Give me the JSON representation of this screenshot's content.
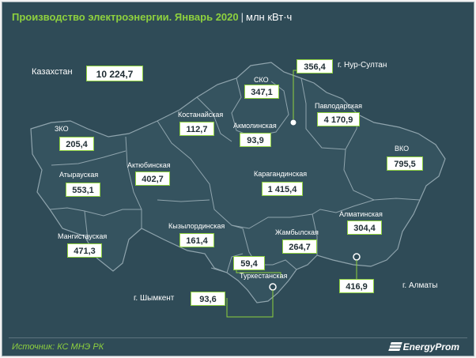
{
  "header": {
    "title": "Производство электроэнергии. Январь 2020",
    "separator": "|",
    "unit": "млн кВт·ч"
  },
  "total": {
    "label": "Казахстан",
    "value": "10 224,7"
  },
  "regions": [
    {
      "id": "zko",
      "name": "ЗКО",
      "value": "205,4"
    },
    {
      "id": "atyrau",
      "name": "Атырауская",
      "value": "553,1"
    },
    {
      "id": "mangystau",
      "name": "Мангистауская",
      "value": "471,3"
    },
    {
      "id": "aktobe",
      "name": "Актюбинская",
      "value": "402,7"
    },
    {
      "id": "kostanay",
      "name": "Костанайская",
      "value": "112,7"
    },
    {
      "id": "sko",
      "name": "СКО",
      "value": "347,1"
    },
    {
      "id": "akmola",
      "name": "Акмолинская",
      "value": "93,9"
    },
    {
      "id": "pavlodar",
      "name": "Павлодарская",
      "value": "4 170,9"
    },
    {
      "id": "vko",
      "name": "ВКО",
      "value": "795,5"
    },
    {
      "id": "karaganda",
      "name": "Карагандинская",
      "value": "1 415,4"
    },
    {
      "id": "kyzylorda",
      "name": "Кызылординская",
      "value": "161,4"
    },
    {
      "id": "zhambyl",
      "name": "Жамбылская",
      "value": "264,7"
    },
    {
      "id": "almaty-region",
      "name": "Алматинская",
      "value": "304,4"
    },
    {
      "id": "turkestan",
      "name": "Туркестанская",
      "value": "59,4"
    }
  ],
  "cities": [
    {
      "id": "nur-sultan",
      "name": "г. Нур-Султан",
      "value": "356,4"
    },
    {
      "id": "almaty",
      "name": "г. Алматы",
      "value": "416,9"
    },
    {
      "id": "shymkent",
      "name": "г. Шымкент",
      "value": "93,6"
    }
  ],
  "footer": {
    "source": "Источник: КС МНЭ РК",
    "brand": "EnergyProm"
  },
  "colors": {
    "background": "#2f4b57",
    "land": "#35535f",
    "border": "#8fa4ad",
    "accent": "#8ed13e",
    "box": "#ffffff"
  }
}
